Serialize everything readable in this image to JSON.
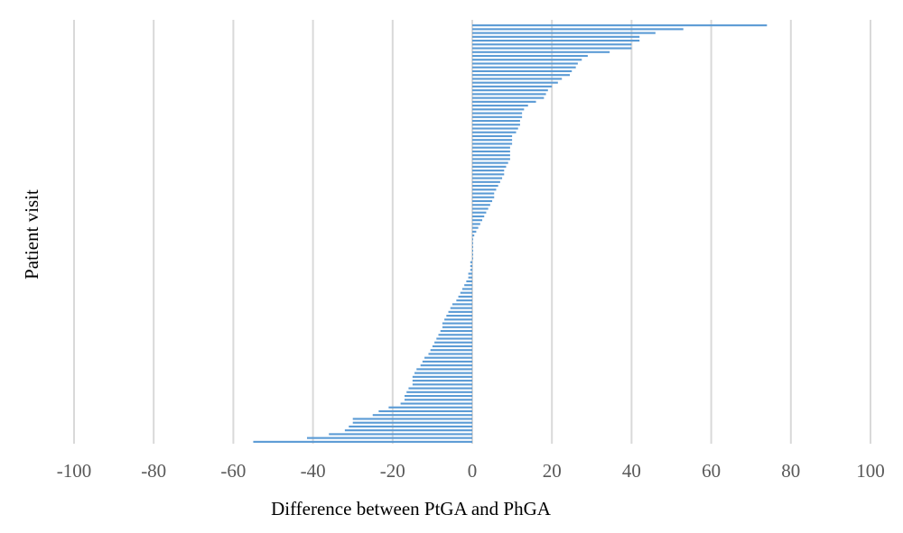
{
  "chart_data": {
    "type": "bar",
    "orientation": "horizontal",
    "title": "",
    "xlabel": "Difference between PtGA and PhGA",
    "ylabel": "Patient visit",
    "xlim": [
      -100,
      100
    ],
    "xticks": [
      -100,
      -80,
      -60,
      -40,
      -20,
      0,
      20,
      40,
      60,
      80,
      100
    ],
    "grid": true,
    "legend": "none",
    "bar_color": "#5b9bd5",
    "grid_color": "#d9d9d9",
    "values": [
      74,
      53,
      46,
      42,
      42,
      40,
      40,
      34.5,
      29,
      27.5,
      26.5,
      26,
      25,
      24.5,
      22.5,
      21.5,
      20,
      19,
      18.5,
      18,
      16,
      14,
      13,
      12.5,
      12.5,
      12,
      12,
      11.5,
      11,
      10,
      10,
      10,
      9.5,
      9.5,
      9.5,
      9.5,
      9,
      8.5,
      8,
      8,
      7.5,
      7,
      6.5,
      6,
      5.5,
      5.5,
      5,
      4.5,
      4,
      3.5,
      3,
      2.5,
      2,
      1.5,
      1,
      0.5,
      0,
      0,
      0,
      0,
      0,
      0,
      -0.5,
      -0.5,
      -0.5,
      -1,
      -1,
      -1.5,
      -2,
      -2.5,
      -3,
      -3.5,
      -4,
      -5,
      -5.5,
      -6,
      -6.5,
      -7,
      -7.5,
      -7.5,
      -8,
      -8.5,
      -9,
      -9.5,
      -10,
      -10.5,
      -11,
      -12,
      -12.5,
      -13,
      -14,
      -14.5,
      -15,
      -15,
      -15,
      -16,
      -16.5,
      -17,
      -17,
      -18,
      -21,
      -23.5,
      -25,
      -30,
      -30,
      -31,
      -32,
      -36,
      -41.5,
      -55
    ]
  }
}
